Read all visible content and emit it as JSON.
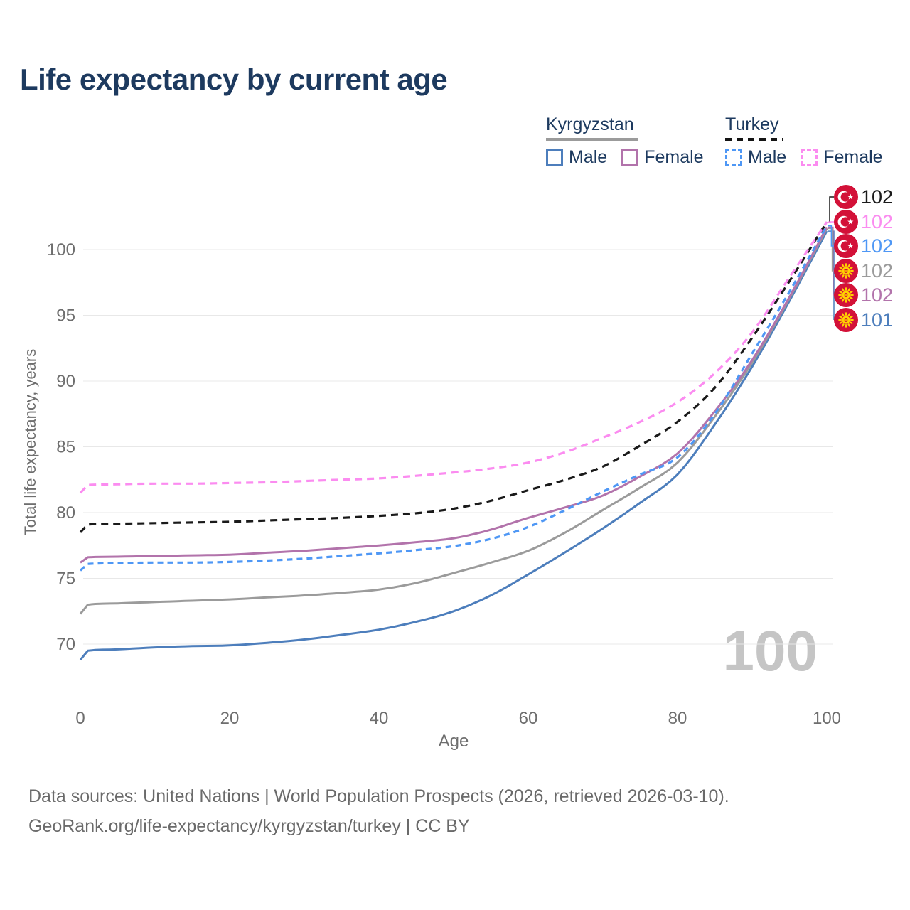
{
  "title": "Life expectancy by current age",
  "legend": {
    "groups": [
      {
        "country": "Kyrgyzstan",
        "underline_color": "#9b9b9b",
        "underline_style": "solid",
        "items": [
          {
            "label": "Male",
            "color": "#4d7ebc"
          },
          {
            "label": "Female",
            "color": "#b273ab"
          }
        ]
      },
      {
        "country": "Turkey",
        "underline_color": "#141414",
        "underline_style": "dashed",
        "items": [
          {
            "label": "Male",
            "color": "#4e97f5"
          },
          {
            "label": "Female",
            "color": "#fb8cf0"
          }
        ]
      }
    ]
  },
  "watermark": "100",
  "footer": {
    "line1": "Data sources: United Nations | World Population Prospects (2026, retrieved 2026-03-10).",
    "line2": "GeoRank.org/life-expectancy/kyrgyzstan/turkey | CC BY"
  },
  "flag_colors": {
    "red": "#d31138",
    "yellow": "#ffd100",
    "white": "#ffffff"
  },
  "chart_data": {
    "type": "line",
    "title": "Life expectancy by current age",
    "xlabel": "Age",
    "ylabel": "Total life expectancy, years",
    "xlim": [
      0,
      100
    ],
    "ylim": [
      67,
      103
    ],
    "xticks": [
      0,
      20,
      40,
      60,
      80,
      100
    ],
    "yticks": [
      70,
      75,
      80,
      85,
      90,
      95,
      100
    ],
    "grid": true,
    "legend_position": "top-right",
    "x": [
      0,
      1,
      5,
      10,
      15,
      20,
      25,
      30,
      35,
      40,
      45,
      50,
      55,
      60,
      65,
      70,
      75,
      80,
      85,
      90,
      95,
      100
    ],
    "series": [
      {
        "name": "Kyrgyzstan - Male",
        "country": "Kyrgyzstan",
        "sex": "male",
        "line_style": "solid",
        "color": "#4d7ebc",
        "end_label": "101",
        "end_label_rank": 5,
        "values": [
          68.8,
          69.5,
          69.6,
          69.75,
          69.85,
          69.9,
          70.1,
          70.35,
          70.7,
          71.1,
          71.7,
          72.5,
          73.7,
          75.3,
          77.0,
          78.8,
          80.75,
          82.9,
          86.7,
          91.1,
          96.1,
          101.4
        ]
      },
      {
        "name": "Kyrgyzstan - Both sexes",
        "country": "Kyrgyzstan",
        "sex": "both",
        "line_style": "solid",
        "color": "#9b9b9b",
        "end_label": "102",
        "end_label_rank": 3,
        "values": [
          72.3,
          73.0,
          73.1,
          73.2,
          73.3,
          73.4,
          73.55,
          73.7,
          73.9,
          74.15,
          74.65,
          75.4,
          76.2,
          77.1,
          78.5,
          80.2,
          81.9,
          83.8,
          87.3,
          91.4,
          96.3,
          101.6
        ]
      },
      {
        "name": "Kyrgyzstan - Female",
        "country": "Kyrgyzstan",
        "sex": "female",
        "line_style": "solid",
        "color": "#b273ab",
        "end_label": "102",
        "end_label_rank": 4,
        "values": [
          76.2,
          76.6,
          76.65,
          76.7,
          76.75,
          76.8,
          76.95,
          77.1,
          77.3,
          77.5,
          77.75,
          78.05,
          78.7,
          79.6,
          80.4,
          81.3,
          82.75,
          84.5,
          87.7,
          91.6,
          96.4,
          101.7
        ]
      },
      {
        "name": "Turkey - Male",
        "country": "Turkey",
        "sex": "male",
        "line_style": "dashed",
        "color": "#4e97f5",
        "end_label": "102",
        "end_label_rank": 2,
        "values": [
          75.6,
          76.1,
          76.15,
          76.2,
          76.2,
          76.25,
          76.35,
          76.5,
          76.7,
          76.9,
          77.15,
          77.45,
          78.0,
          78.9,
          80.2,
          81.6,
          82.9,
          84.2,
          87.5,
          92.1,
          96.8,
          101.8
        ]
      },
      {
        "name": "Turkey - Both sexes",
        "country": "Turkey",
        "sex": "both",
        "line_style": "dashed",
        "color": "#1a1a1a",
        "end_label": "102",
        "end_label_rank": 0,
        "values": [
          78.5,
          79.1,
          79.15,
          79.2,
          79.25,
          79.3,
          79.4,
          79.5,
          79.6,
          79.75,
          79.95,
          80.3,
          80.9,
          81.7,
          82.5,
          83.5,
          85.1,
          86.9,
          89.5,
          93.3,
          97.6,
          102.1
        ]
      },
      {
        "name": "Turkey - Female",
        "country": "Turkey",
        "sex": "female",
        "line_style": "dashed",
        "color": "#fb8cf0",
        "end_label": "102",
        "end_label_rank": 1,
        "values": [
          81.5,
          82.1,
          82.15,
          82.2,
          82.2,
          82.25,
          82.3,
          82.4,
          82.5,
          82.6,
          82.8,
          83.05,
          83.35,
          83.8,
          84.6,
          85.7,
          86.9,
          88.4,
          90.6,
          93.7,
          97.9,
          102.1
        ]
      }
    ]
  }
}
